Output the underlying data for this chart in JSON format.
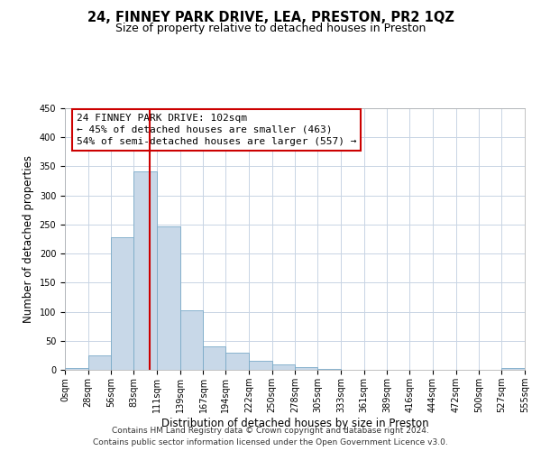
{
  "title": "24, FINNEY PARK DRIVE, LEA, PRESTON, PR2 1QZ",
  "subtitle": "Size of property relative to detached houses in Preston",
  "xlabel": "Distribution of detached houses by size in Preston",
  "ylabel": "Number of detached properties",
  "bin_edges": [
    0,
    28,
    56,
    83,
    111,
    139,
    167,
    194,
    222,
    250,
    278,
    305,
    333,
    361,
    389,
    416,
    444,
    472,
    500,
    527,
    555
  ],
  "bin_counts": [
    3,
    25,
    228,
    342,
    246,
    103,
    41,
    30,
    15,
    10,
    4,
    1,
    0,
    0,
    0,
    0,
    0,
    0,
    0,
    3
  ],
  "bar_color": "#c8d8e8",
  "bar_edge_color": "#7aaac8",
  "vline_x": 102,
  "vline_color": "#cc0000",
  "ylim": [
    0,
    450
  ],
  "xlim": [
    0,
    555
  ],
  "annotation_title": "24 FINNEY PARK DRIVE: 102sqm",
  "annotation_line2": "← 45% of detached houses are smaller (463)",
  "annotation_line3": "54% of semi-detached houses are larger (557) →",
  "annotation_box_color": "#ffffff",
  "annotation_box_edge": "#cc0000",
  "tick_labels": [
    "0sqm",
    "28sqm",
    "56sqm",
    "83sqm",
    "111sqm",
    "139sqm",
    "167sqm",
    "194sqm",
    "222sqm",
    "250sqm",
    "278sqm",
    "305sqm",
    "333sqm",
    "361sqm",
    "389sqm",
    "416sqm",
    "444sqm",
    "472sqm",
    "500sqm",
    "527sqm",
    "555sqm"
  ],
  "footer_line1": "Contains HM Land Registry data © Crown copyright and database right 2024.",
  "footer_line2": "Contains public sector information licensed under the Open Government Licence v3.0.",
  "bg_color": "#ffffff",
  "grid_color": "#c8d4e4",
  "title_fontsize": 10.5,
  "subtitle_fontsize": 9,
  "axis_label_fontsize": 8.5,
  "tick_fontsize": 7,
  "footer_fontsize": 6.5,
  "annot_fontsize": 8
}
